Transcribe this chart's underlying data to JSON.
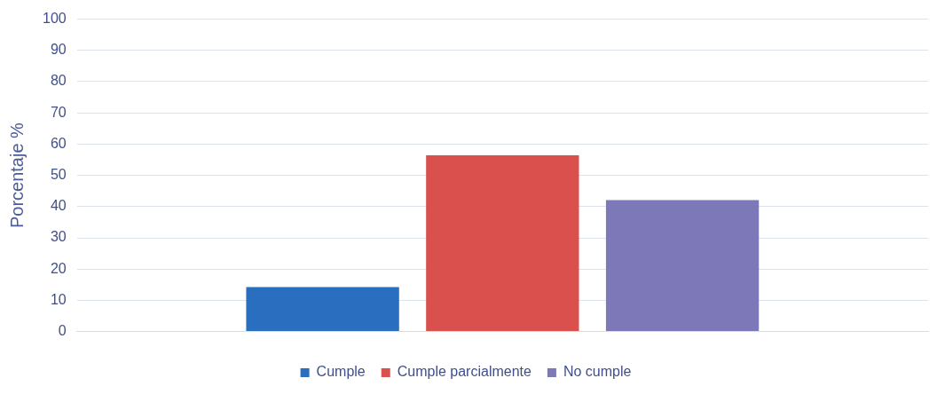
{
  "chart_data": {
    "type": "bar",
    "ylabel": "Porcentaje %",
    "categories": [
      null
    ],
    "series": [
      {
        "name": "Cumple",
        "color": "#2a6ebf",
        "values": [
          14.2
        ]
      },
      {
        "name": "Cumple parcialmente",
        "color": "#d9504c",
        "values": [
          56.4
        ]
      },
      {
        "name": "No cumple",
        "color": "#7d78b8",
        "values": [
          42.1
        ]
      }
    ],
    "ylim": [
      0,
      100
    ],
    "yticks": [
      0,
      10,
      20,
      30,
      40,
      50,
      60,
      70,
      80,
      90,
      100
    ],
    "grid": "y",
    "legend": "bottom"
  }
}
